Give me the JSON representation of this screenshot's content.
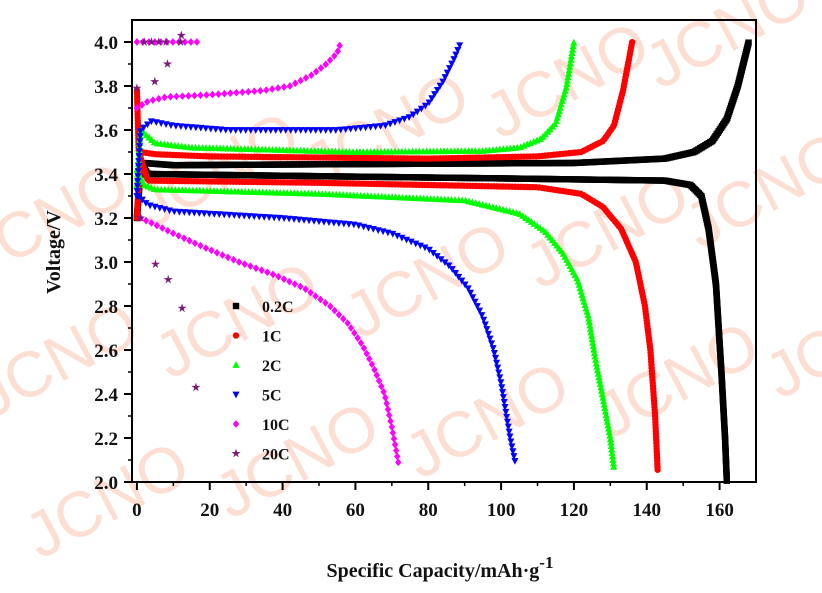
{
  "watermark": "JCNO",
  "chart_data": {
    "type": "scatter",
    "title": "",
    "xlabel": "Specific Capacity/mAh·g",
    "xlabel_superscript": "-1",
    "ylabel": "Voltage/V",
    "xlim": [
      -1.35,
      170
    ],
    "ylim": [
      2.0,
      4.1
    ],
    "xticks": [
      0,
      20,
      40,
      60,
      80,
      100,
      120,
      140,
      160
    ],
    "yticks": [
      2.0,
      2.2,
      2.4,
      2.6,
      2.8,
      3.0,
      3.2,
      3.4,
      3.6,
      3.8,
      4.0
    ],
    "xtick_labels": [
      "0",
      "20",
      "40",
      "60",
      "80",
      "100",
      "120",
      "140",
      "160"
    ],
    "ytick_labels": [
      "2.0",
      "2.2",
      "2.4",
      "2.6",
      "2.8",
      "3.0",
      "3.2",
      "3.4",
      "3.6",
      "3.8",
      "4.0"
    ],
    "grid": false,
    "legend_position": "center-left",
    "series": [
      {
        "name": "0.2C",
        "color": "#000000",
        "marker": "square",
        "spacing": 2,
        "charge": [
          [
            0,
            3.2
          ],
          [
            1,
            3.42
          ],
          [
            2,
            3.45
          ],
          [
            10,
            3.44
          ],
          [
            60,
            3.445
          ],
          [
            120,
            3.45
          ],
          [
            145,
            3.47
          ],
          [
            153,
            3.5
          ],
          [
            158,
            3.55
          ],
          [
            162,
            3.65
          ],
          [
            165,
            3.8
          ],
          [
            168,
            4.0
          ]
        ],
        "discharge": [
          [
            1,
            3.45
          ],
          [
            3,
            3.4
          ],
          [
            50,
            3.39
          ],
          [
            100,
            3.38
          ],
          [
            145,
            3.37
          ],
          [
            152,
            3.35
          ],
          [
            155,
            3.3
          ],
          [
            157,
            3.15
          ],
          [
            159,
            2.9
          ],
          [
            160.5,
            2.5
          ],
          [
            161.5,
            2.2
          ],
          [
            162,
            2.0
          ]
        ]
      },
      {
        "name": "1C",
        "color": "#ff0000",
        "marker": "circle",
        "spacing": 3,
        "charge": [
          [
            0,
            3.2
          ],
          [
            1,
            3.5
          ],
          [
            5,
            3.49
          ],
          [
            20,
            3.48
          ],
          [
            80,
            3.47
          ],
          [
            110,
            3.48
          ],
          [
            122,
            3.5
          ],
          [
            128,
            3.55
          ],
          [
            131,
            3.62
          ],
          [
            133.5,
            3.78
          ],
          [
            136,
            4.0
          ]
        ],
        "discharge": [
          [
            0,
            3.78
          ],
          [
            0.5,
            3.5
          ],
          [
            3,
            3.37
          ],
          [
            50,
            3.36
          ],
          [
            110,
            3.34
          ],
          [
            122,
            3.31
          ],
          [
            128,
            3.25
          ],
          [
            133,
            3.15
          ],
          [
            137,
            3.0
          ],
          [
            139.5,
            2.8
          ],
          [
            141,
            2.6
          ],
          [
            142.3,
            2.3
          ],
          [
            143,
            2.05
          ]
        ]
      },
      {
        "name": "2C",
        "color": "#00ff00",
        "marker": "triangle-up",
        "spacing": 3.5,
        "charge": [
          [
            0,
            3.35
          ],
          [
            1,
            3.6
          ],
          [
            5,
            3.54
          ],
          [
            15,
            3.52
          ],
          [
            60,
            3.5
          ],
          [
            95,
            3.505
          ],
          [
            105,
            3.52
          ],
          [
            111,
            3.56
          ],
          [
            115,
            3.63
          ],
          [
            118,
            3.8
          ],
          [
            120,
            4.0
          ]
        ],
        "discharge": [
          [
            0,
            3.42
          ],
          [
            2,
            3.35
          ],
          [
            5,
            3.33
          ],
          [
            50,
            3.31
          ],
          [
            90,
            3.28
          ],
          [
            105,
            3.22
          ],
          [
            112,
            3.14
          ],
          [
            117,
            3.04
          ],
          [
            121,
            2.92
          ],
          [
            124,
            2.75
          ],
          [
            126,
            2.55
          ],
          [
            128,
            2.38
          ],
          [
            130,
            2.2
          ],
          [
            131,
            2.06
          ]
        ]
      },
      {
        "name": "5C",
        "color": "#0000ff",
        "marker": "triangle-down",
        "spacing": 5,
        "charge": [
          [
            0,
            3.3
          ],
          [
            1,
            3.6
          ],
          [
            4,
            3.64
          ],
          [
            10,
            3.62
          ],
          [
            25,
            3.6
          ],
          [
            55,
            3.6
          ],
          [
            68,
            3.62
          ],
          [
            75,
            3.66
          ],
          [
            80,
            3.72
          ],
          [
            84,
            3.82
          ],
          [
            87,
            3.92
          ],
          [
            89,
            4.0
          ]
        ],
        "discharge": [
          [
            0.5,
            3.3
          ],
          [
            3,
            3.26
          ],
          [
            10,
            3.23
          ],
          [
            40,
            3.2
          ],
          [
            60,
            3.17
          ],
          [
            70,
            3.13
          ],
          [
            80,
            3.06
          ],
          [
            86,
            2.98
          ],
          [
            91,
            2.88
          ],
          [
            95,
            2.75
          ],
          [
            98,
            2.6
          ],
          [
            100,
            2.45
          ],
          [
            101.5,
            2.3
          ],
          [
            102.5,
            2.2
          ],
          [
            104,
            2.08
          ]
        ]
      },
      {
        "name": "10C",
        "color": "#ff00ff",
        "marker": "diamond",
        "spacing": 6,
        "charge": [
          [
            0,
            3.7
          ],
          [
            3,
            3.73
          ],
          [
            8,
            3.75
          ],
          [
            20,
            3.76
          ],
          [
            35,
            3.78
          ],
          [
            42,
            3.8
          ],
          [
            48,
            3.85
          ],
          [
            52,
            3.9
          ],
          [
            55,
            3.95
          ],
          [
            56,
            4.0
          ]
        ],
        "cv": [
          [
            0,
            4.0
          ],
          [
            18,
            4.0
          ]
        ],
        "discharge": [
          [
            1,
            3.2
          ],
          [
            5,
            3.17
          ],
          [
            10,
            3.13
          ],
          [
            18,
            3.07
          ],
          [
            28,
            3.0
          ],
          [
            38,
            2.94
          ],
          [
            46,
            2.88
          ],
          [
            53,
            2.8
          ],
          [
            58,
            2.72
          ],
          [
            62,
            2.62
          ],
          [
            65,
            2.52
          ],
          [
            68,
            2.4
          ],
          [
            70,
            2.25
          ],
          [
            72,
            2.07
          ]
        ]
      },
      {
        "name": "20C",
        "color": "#7a1c78",
        "marker": "star",
        "raw": true,
        "charge": [
          [
            0,
            3.79
          ],
          [
            4.9,
            3.82
          ],
          [
            8.4,
            3.9
          ],
          [
            12.2,
            4.03
          ],
          [
            2,
            4.0
          ],
          [
            4,
            4.0
          ],
          [
            6,
            4.0
          ],
          [
            8,
            4.0
          ],
          [
            12,
            4.0
          ]
        ],
        "discharge": [
          [
            1,
            3.2
          ],
          [
            5.1,
            2.99
          ],
          [
            8.6,
            2.92
          ],
          [
            12.4,
            2.79
          ],
          [
            16.2,
            2.43
          ]
        ]
      }
    ]
  }
}
